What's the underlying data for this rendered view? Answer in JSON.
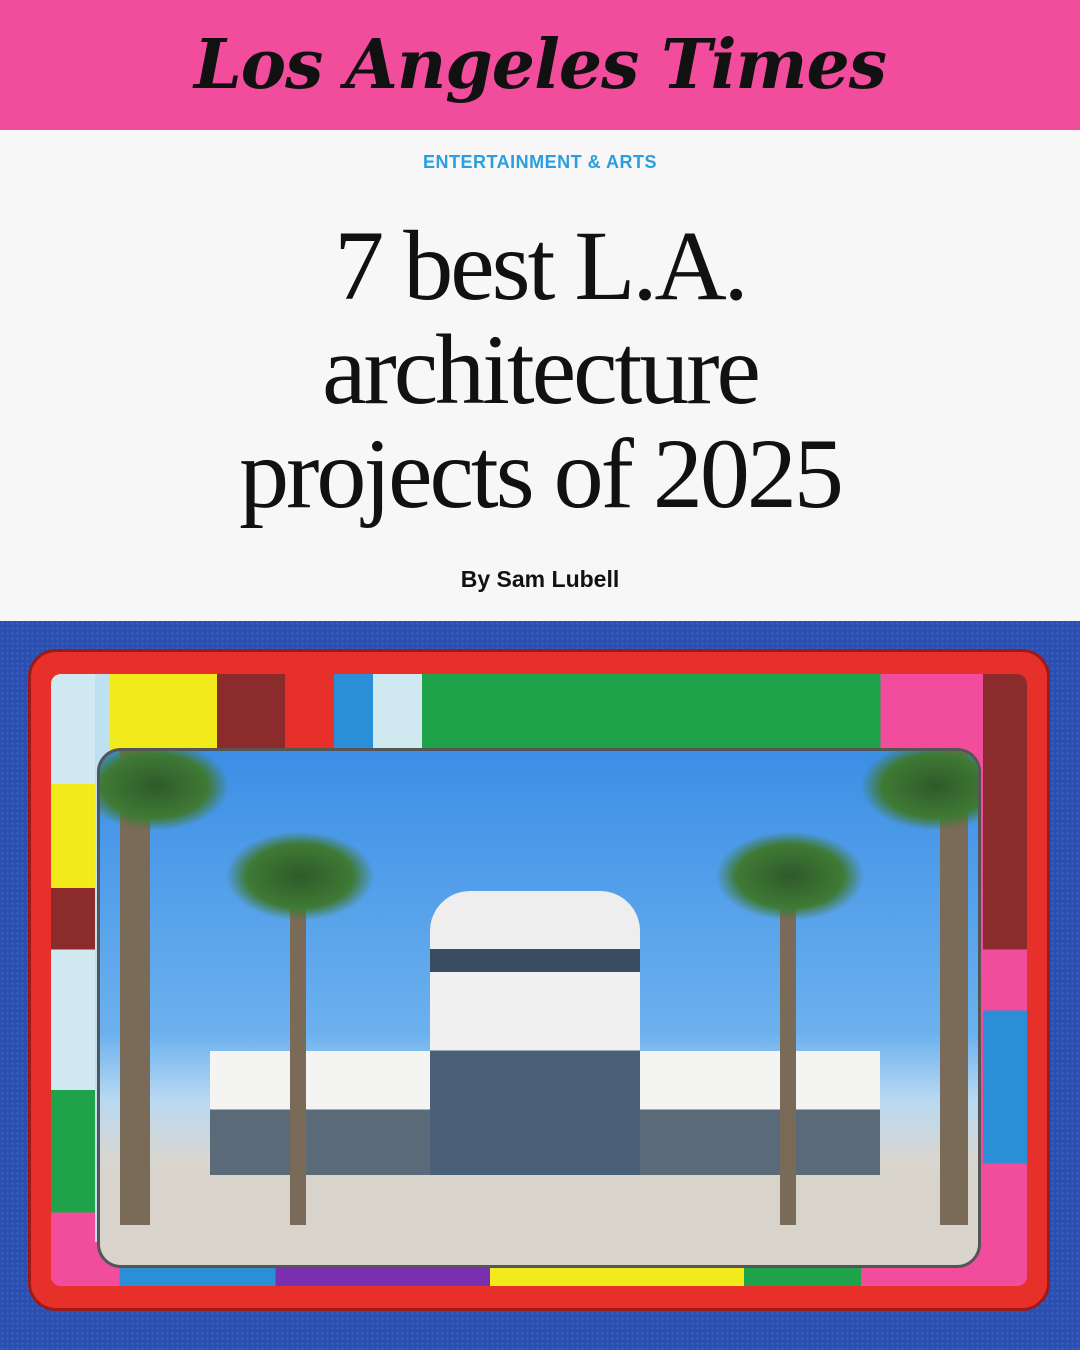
{
  "masthead": {
    "logo": "Los Angeles Times",
    "bg_color": "#f24c9c"
  },
  "article": {
    "section": "ENTERTAINMENT & ARTS",
    "section_color": "#2a9ee0",
    "title_lines": [
      "7 best L.A.",
      "architecture",
      "projects of 2025"
    ],
    "byline": "By Sam Lubell"
  },
  "image": {
    "subject-icon": "airport-terminal-photo"
  }
}
